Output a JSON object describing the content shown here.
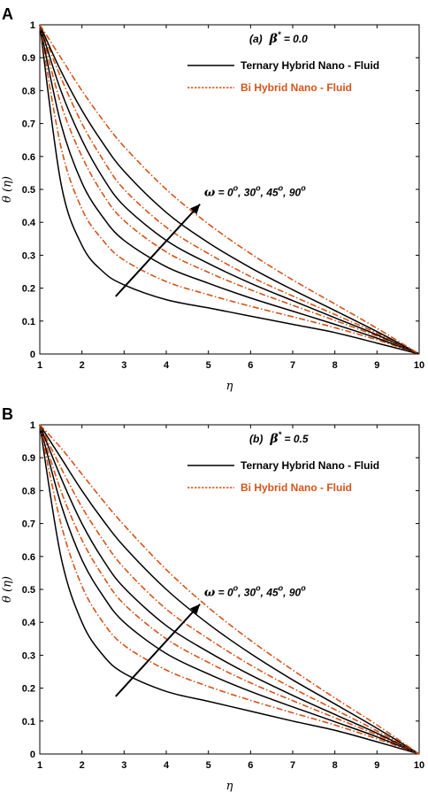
{
  "colors": {
    "ternary": "#000000",
    "bi": "#d4541a",
    "axis": "#000000"
  },
  "chart_data": [
    {
      "type": "line",
      "panel_letter": "A",
      "case_prefix": "(a)",
      "case_symbol": "β",
      "case_sup": "*",
      "case_value": " = 0.0",
      "xlabel": "η",
      "ylabel": "θ (η)",
      "xlim": [
        1,
        10
      ],
      "ylim": [
        0,
        1
      ],
      "xticks": [
        "1",
        "2",
        "3",
        "4",
        "5",
        "6",
        "7",
        "8",
        "9",
        "10"
      ],
      "yticks": [
        "0",
        "0.1",
        "0.2",
        "0.3",
        "0.4",
        "0.5",
        "0.6",
        "0.7",
        "0.8",
        "0.9",
        "1"
      ],
      "grid": false,
      "legend_position": "top-right",
      "legend": [
        {
          "label": "Ternary Hybrid Nano - Fluid",
          "style": "solid",
          "color": "#000000"
        },
        {
          "label": "Bi Hybrid Nano - Fluid",
          "style": "dash-dot",
          "color": "#d4541a"
        }
      ],
      "annotation": {
        "symbol": "ω",
        "parts": [
          " = 0",
          "o",
          ", 30",
          "o",
          ", 45",
          "o",
          ", 90",
          "o"
        ]
      },
      "x": [
        1,
        1.5,
        2,
        2.5,
        3,
        4,
        5,
        6,
        7,
        8,
        9,
        10
      ],
      "series": [
        {
          "group": "ternary",
          "values": [
            1.0,
            0.52,
            0.33,
            0.25,
            0.21,
            0.165,
            0.14,
            0.115,
            0.09,
            0.065,
            0.033,
            0.0
          ]
        },
        {
          "group": "bi",
          "values": [
            1.0,
            0.63,
            0.44,
            0.345,
            0.285,
            0.22,
            0.18,
            0.145,
            0.113,
            0.08,
            0.043,
            0.0
          ]
        },
        {
          "group": "ternary",
          "values": [
            1.0,
            0.7,
            0.52,
            0.415,
            0.345,
            0.265,
            0.215,
            0.17,
            0.13,
            0.09,
            0.048,
            0.0
          ]
        },
        {
          "group": "bi",
          "values": [
            1.0,
            0.76,
            0.6,
            0.485,
            0.405,
            0.31,
            0.248,
            0.195,
            0.148,
            0.102,
            0.054,
            0.0
          ]
        },
        {
          "group": "ternary",
          "values": [
            1.0,
            0.8,
            0.65,
            0.535,
            0.45,
            0.345,
            0.275,
            0.215,
            0.162,
            0.11,
            0.058,
            0.0
          ]
        },
        {
          "group": "bi",
          "values": [
            1.0,
            0.84,
            0.7,
            0.59,
            0.5,
            0.385,
            0.305,
            0.235,
            0.176,
            0.12,
            0.063,
            0.0
          ]
        },
        {
          "group": "ternary",
          "values": [
            1.0,
            0.86,
            0.74,
            0.64,
            0.555,
            0.43,
            0.338,
            0.262,
            0.195,
            0.132,
            0.068,
            0.0
          ]
        },
        {
          "group": "bi",
          "values": [
            1.0,
            0.9,
            0.8,
            0.71,
            0.63,
            0.5,
            0.395,
            0.305,
            0.225,
            0.152,
            0.078,
            0.0
          ]
        }
      ]
    },
    {
      "type": "line",
      "panel_letter": "B",
      "case_prefix": "(b)",
      "case_symbol": "β",
      "case_sup": "*",
      "case_value": " = 0.5",
      "xlabel": "η",
      "ylabel": "θ (η)",
      "xlim": [
        1,
        10
      ],
      "ylim": [
        0,
        1
      ],
      "xticks": [
        "1",
        "2",
        "3",
        "4",
        "5",
        "6",
        "7",
        "8",
        "9",
        "10"
      ],
      "yticks": [
        "0",
        "0.1",
        "0.2",
        "0.3",
        "0.4",
        "0.5",
        "0.6",
        "0.7",
        "0.8",
        "0.9",
        "1"
      ],
      "grid": false,
      "legend_position": "top-right",
      "legend": [
        {
          "label": "Ternary Hybrid Nano - Fluid",
          "style": "solid",
          "color": "#000000"
        },
        {
          "label": "Bi Hybrid Nano - Fluid",
          "style": "dash-dot",
          "color": "#d4541a"
        }
      ],
      "annotation": {
        "symbol": "ω",
        "parts": [
          " = 0",
          "o",
          ", 30",
          "o",
          ", 45",
          "o",
          ", 90",
          "o"
        ]
      },
      "x": [
        1,
        1.5,
        2,
        2.5,
        3,
        4,
        5,
        6,
        7,
        8,
        9,
        10
      ],
      "series": [
        {
          "group": "ternary",
          "values": [
            1.0,
            0.6,
            0.4,
            0.3,
            0.245,
            0.19,
            0.16,
            0.13,
            0.1,
            0.072,
            0.037,
            0.0
          ]
        },
        {
          "group": "bi",
          "values": [
            1.0,
            0.7,
            0.51,
            0.4,
            0.33,
            0.255,
            0.205,
            0.163,
            0.125,
            0.088,
            0.046,
            0.0
          ]
        },
        {
          "group": "ternary",
          "values": [
            1.0,
            0.76,
            0.59,
            0.48,
            0.4,
            0.305,
            0.243,
            0.19,
            0.143,
            0.098,
            0.052,
            0.0
          ]
        },
        {
          "group": "bi",
          "values": [
            1.0,
            0.8,
            0.65,
            0.54,
            0.455,
            0.35,
            0.278,
            0.216,
            0.162,
            0.11,
            0.058,
            0.0
          ]
        },
        {
          "group": "ternary",
          "values": [
            1.0,
            0.84,
            0.7,
            0.59,
            0.505,
            0.39,
            0.31,
            0.24,
            0.178,
            0.12,
            0.063,
            0.0
          ]
        },
        {
          "group": "bi",
          "values": [
            1.0,
            0.87,
            0.75,
            0.65,
            0.565,
            0.44,
            0.35,
            0.27,
            0.2,
            0.135,
            0.07,
            0.0
          ]
        },
        {
          "group": "ternary",
          "values": [
            1.0,
            0.9,
            0.8,
            0.71,
            0.63,
            0.5,
            0.395,
            0.305,
            0.225,
            0.152,
            0.078,
            0.0
          ]
        },
        {
          "group": "bi",
          "values": [
            1.0,
            0.93,
            0.85,
            0.77,
            0.695,
            0.56,
            0.445,
            0.345,
            0.255,
            0.17,
            0.088,
            0.0
          ]
        }
      ]
    }
  ]
}
